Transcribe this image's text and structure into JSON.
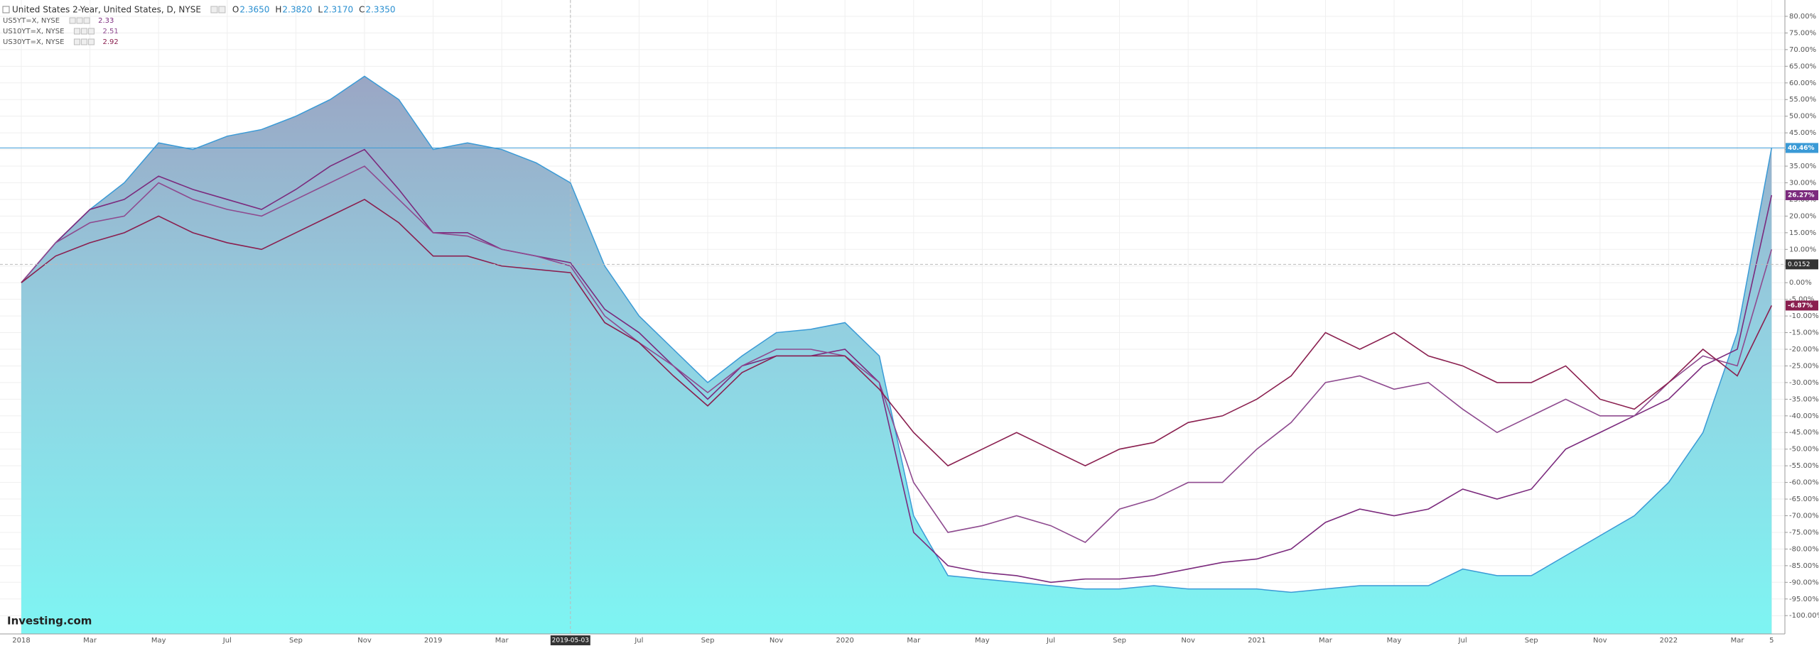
{
  "chart_data": {
    "type": "area-lines",
    "header": {
      "ohlc": [
        {
          "key": "O",
          "value": 2.365,
          "label": "2.3650"
        },
        {
          "key": "H",
          "value": 2.382,
          "label": "2.3820"
        },
        {
          "key": "L",
          "value": 2.317,
          "label": "2.3170"
        },
        {
          "key": "C",
          "value": 2.335,
          "label": "2.3350"
        }
      ]
    },
    "logo": "Investing.com",
    "categories": [
      "2018",
      null,
      "Mar",
      null,
      "May",
      null,
      "Jul",
      null,
      "Sep",
      null,
      "Nov",
      null,
      "2019",
      null,
      "Mar",
      null,
      "2019-05-03",
      null,
      "Jul",
      null,
      "Sep",
      null,
      "Nov",
      null,
      "2020",
      null,
      "Mar",
      null,
      "May",
      null,
      "Jul",
      null,
      "Sep",
      null,
      "Nov",
      null,
      "2021",
      null,
      "Mar",
      null,
      "May",
      null,
      "Jul",
      null,
      "Sep",
      null,
      "Nov",
      null,
      "2022",
      null,
      "Mar",
      "5"
    ],
    "crosshair": {
      "category": 16,
      "y": 5.5,
      "y_label": "0.0152"
    },
    "series": [
      {
        "name": "United States 2-Year, United States, D, NYSE",
        "color": "#3a9ad6",
        "kind": "area",
        "values": [
          0,
          12,
          22,
          30,
          42,
          40,
          44,
          46,
          50,
          55,
          62,
          55,
          40,
          42,
          40,
          36,
          30,
          5,
          -10,
          -20,
          -30,
          -22,
          -15,
          -14,
          -12,
          -22,
          -70,
          -88,
          -89,
          -90,
          -91,
          -92,
          -92,
          -91,
          -92,
          -92,
          -92,
          -93,
          -92,
          -91,
          -91,
          -91,
          -86,
          -88,
          -88,
          -82,
          -76,
          -70,
          -60,
          -45,
          -15,
          40.46
        ],
        "value_labels": [
          null,
          null,
          null,
          null,
          null,
          null,
          null,
          null,
          null,
          null,
          null,
          null,
          null,
          null,
          null,
          null,
          null,
          null,
          null,
          null,
          null,
          null,
          null,
          null,
          null,
          null,
          null,
          null,
          null,
          null,
          null,
          null,
          null,
          null,
          null,
          null,
          null,
          null,
          null,
          null,
          null,
          null,
          null,
          null,
          null,
          null,
          null,
          null,
          null,
          null,
          null,
          "40.46%"
        ]
      },
      {
        "name": "US5YT=X, NYSE",
        "legend_value": 2.33,
        "color": "#7b2a7d",
        "kind": "line",
        "values": [
          0,
          12,
          22,
          25,
          32,
          28,
          25,
          22,
          28,
          35,
          40,
          28,
          15,
          15,
          10,
          8,
          6,
          -8,
          -15,
          -25,
          -35,
          -25,
          -22,
          -22,
          -20,
          -30,
          -75,
          -85,
          -87,
          -88,
          -90,
          -89,
          -89,
          -88,
          -86,
          -84,
          -83,
          -80,
          -72,
          -68,
          -70,
          -68,
          -62,
          -65,
          -62,
          -50,
          -45,
          -40,
          -35,
          -25,
          -20,
          26.27
        ],
        "value_labels": [
          null,
          null,
          null,
          null,
          null,
          null,
          null,
          null,
          null,
          null,
          null,
          null,
          null,
          null,
          null,
          null,
          null,
          null,
          null,
          null,
          null,
          null,
          null,
          null,
          null,
          null,
          null,
          null,
          null,
          null,
          null,
          null,
          null,
          null,
          null,
          null,
          null,
          null,
          null,
          null,
          null,
          null,
          null,
          null,
          null,
          null,
          null,
          null,
          null,
          null,
          null,
          "26.27%"
        ]
      },
      {
        "name": "US10YT=X, NYSE",
        "legend_value": 2.51,
        "color": "#8e4a8f",
        "kind": "line",
        "values": [
          0,
          12,
          18,
          20,
          30,
          25,
          22,
          20,
          25,
          30,
          35,
          25,
          15,
          14,
          10,
          8,
          5,
          -10,
          -18,
          -25,
          -33,
          -25,
          -20,
          -20,
          -22,
          -30,
          -60,
          -75,
          -73,
          -70,
          -73,
          -78,
          -68,
          -65,
          -60,
          -60,
          -50,
          -42,
          -30,
          -28,
          -32,
          -30,
          -38,
          -45,
          -40,
          -35,
          -40,
          -40,
          -30,
          -22,
          -25,
          10
        ]
      },
      {
        "name": "US30YT=X, NYSE",
        "legend_value": 2.92,
        "color": "#8a1f4f",
        "kind": "line",
        "values": [
          0,
          8,
          12,
          15,
          20,
          15,
          12,
          10,
          15,
          20,
          25,
          18,
          8,
          8,
          5,
          4,
          3,
          -12,
          -18,
          -28,
          -37,
          -27,
          -22,
          -22,
          -22,
          -32,
          -45,
          -55,
          -50,
          -45,
          -50,
          -55,
          -50,
          -48,
          -42,
          -40,
          -35,
          -28,
          -15,
          -20,
          -15,
          -22,
          -25,
          -30,
          -30,
          -25,
          -35,
          -38,
          -30,
          -20,
          -28,
          -6.87
        ],
        "value_labels": [
          null,
          null,
          null,
          null,
          null,
          null,
          null,
          null,
          null,
          null,
          null,
          null,
          null,
          null,
          null,
          null,
          null,
          null,
          null,
          null,
          null,
          null,
          null,
          null,
          null,
          null,
          null,
          null,
          null,
          null,
          null,
          null,
          null,
          null,
          null,
          null,
          null,
          null,
          null,
          null,
          null,
          null,
          null,
          null,
          null,
          null,
          null,
          null,
          null,
          null,
          null,
          "-6.87%"
        ]
      }
    ],
    "ylim": [
      -105.5,
      84.9
    ],
    "yticks": [
      {
        "value": 80,
        "label": "80.00%"
      },
      {
        "value": 75,
        "label": "75.00%"
      },
      {
        "value": 70,
        "label": "70.00%"
      },
      {
        "value": 65,
        "label": "65.00%"
      },
      {
        "value": 60,
        "label": "60.00%"
      },
      {
        "value": 55,
        "label": "55.00%"
      },
      {
        "value": 50,
        "label": "50.00%"
      },
      {
        "value": 45,
        "label": "45.00%"
      },
      {
        "value": 40,
        "label": "40.00%"
      },
      {
        "value": 35,
        "label": "35.00%"
      },
      {
        "value": 30,
        "label": "30.00%"
      },
      {
        "value": 25,
        "label": "25.00%"
      },
      {
        "value": 20,
        "label": "20.00%"
      },
      {
        "value": 15,
        "label": "15.00%"
      },
      {
        "value": 10,
        "label": "10.00%"
      },
      {
        "value": 5,
        "label": "5.00%"
      },
      {
        "value": 0,
        "label": "0.00%"
      },
      {
        "value": -5,
        "label": "-5.00%"
      },
      {
        "value": -10,
        "label": "-10.00%"
      },
      {
        "value": -15,
        "label": "-15.00%"
      },
      {
        "value": -20,
        "label": "-20.00%"
      },
      {
        "value": -25,
        "label": "-25.00%"
      },
      {
        "value": -30,
        "label": "-30.00%"
      },
      {
        "value": -35,
        "label": "-35.00%"
      },
      {
        "value": -40,
        "label": "-40.00%"
      },
      {
        "value": -45,
        "label": "-45.00%"
      },
      {
        "value": -50,
        "label": "-50.00%"
      },
      {
        "value": -55,
        "label": "-55.00%"
      },
      {
        "value": -60,
        "label": "-60.00%"
      },
      {
        "value": -65,
        "label": "-65.00%"
      },
      {
        "value": -70,
        "label": "-70.00%"
      },
      {
        "value": -75,
        "label": "-75.00%"
      },
      {
        "value": -80,
        "label": "-80.00%"
      },
      {
        "value": -85,
        "label": "-85.00%"
      },
      {
        "value": -90,
        "label": "-90.00%"
      },
      {
        "value": -95,
        "label": "-95.00%"
      },
      {
        "value": -100,
        "label": "-100.00%"
      }
    ],
    "grid": true
  }
}
